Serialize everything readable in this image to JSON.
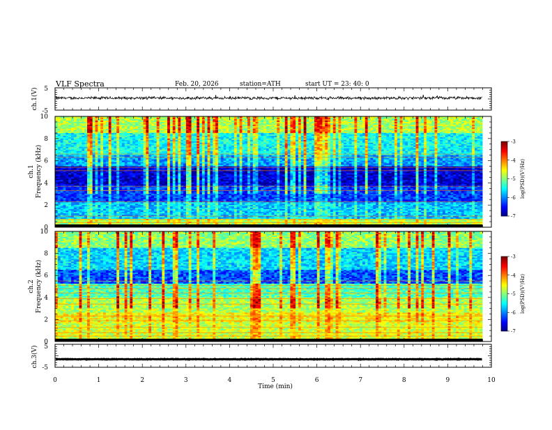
{
  "header": {
    "title": "VLF  Spectra",
    "date": "Feb. 20, 2026",
    "station": "station=ATH",
    "start_ut": "start  UT  =   23: 40: 0"
  },
  "chart_data": {
    "type": "spectrogram",
    "xlabel": "Time  (min)",
    "xlim": [
      0,
      10
    ],
    "xticks": [
      "0",
      "1",
      "2",
      "3",
      "4",
      "5",
      "6",
      "7",
      "8",
      "9",
      "10"
    ],
    "data_end_min": 9.8,
    "panels": [
      {
        "id": "ch1",
        "kind": "waveform",
        "ylabel": "ch.1(V)",
        "ylim": [
          -5,
          5
        ],
        "yticks": [
          "5",
          "-5"
        ],
        "baseline_v": 0.4,
        "noise_amplitude_v": 0.8
      },
      {
        "id": "ch1-spec",
        "kind": "spectrogram",
        "ylabel_line1": "ch.1",
        "ylabel_line2": "Frequency (kHz)",
        "ylim_khz": [
          0,
          10
        ],
        "yticks": [
          "0",
          "2",
          "4",
          "6",
          "8",
          "10"
        ],
        "colorbar": {
          "label": "log(PSD)(V²/Hz)",
          "range": [
            -7,
            -3
          ],
          "ticks": [
            "-3",
            "-4",
            "-5",
            "-6",
            "-7"
          ]
        }
      },
      {
        "id": "ch2-spec",
        "kind": "spectrogram",
        "ylabel_line1": "ch.2",
        "ylabel_line2": "Frequency (kHz)",
        "ylim_khz": [
          0,
          10
        ],
        "yticks": [
          "0",
          "2",
          "4",
          "6",
          "8",
          "10"
        ],
        "colorbar": {
          "label": "log(PSD)(V²/Hz)",
          "range": [
            -7,
            -3
          ],
          "ticks": [
            "-3",
            "-4",
            "-5",
            "-6",
            "-7"
          ]
        }
      },
      {
        "id": "ch3",
        "kind": "waveform",
        "ylabel": "ch.3(V)",
        "ylim": [
          -5,
          5
        ],
        "yticks": [
          "5",
          "-5"
        ],
        "baseline_v": -1.5,
        "noise_amplitude_v": 0.15
      }
    ]
  }
}
